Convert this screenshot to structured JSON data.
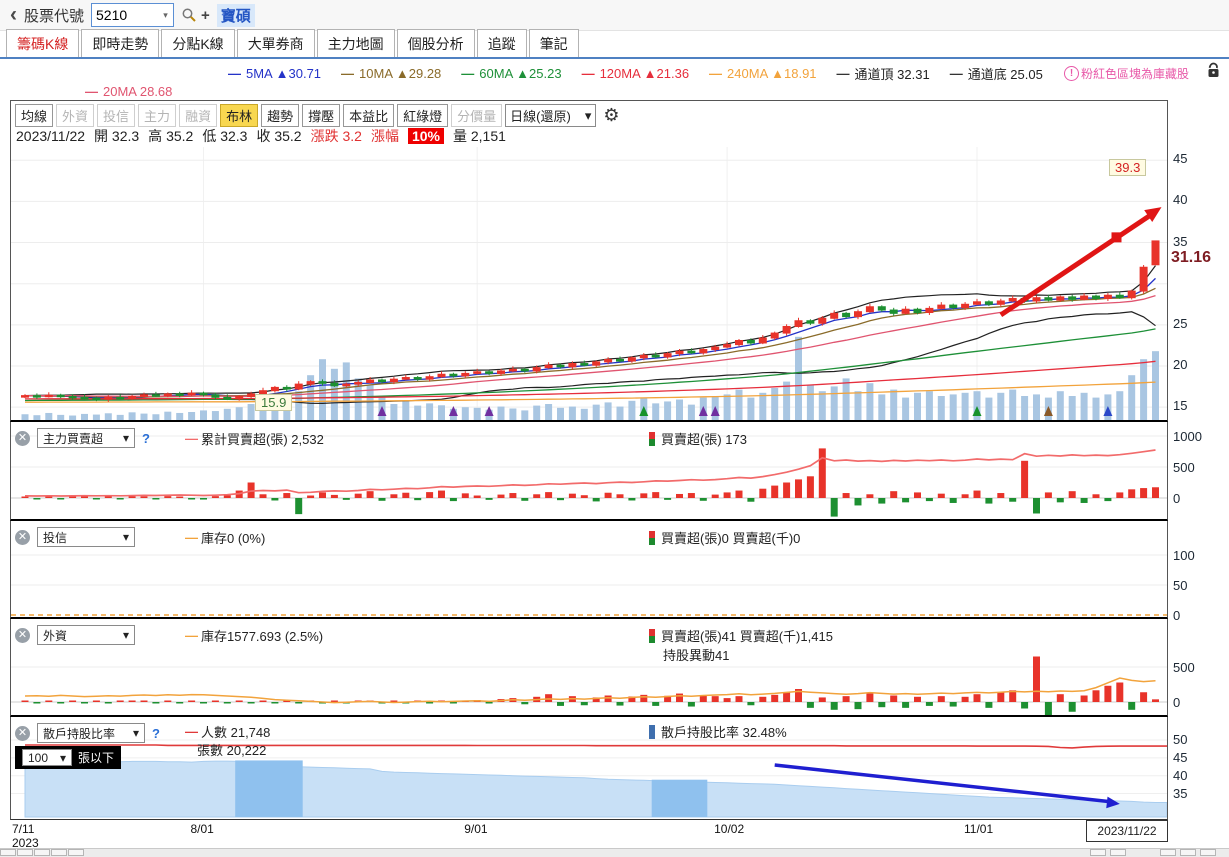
{
  "topbar": {
    "back": "‹",
    "label": "股票代號",
    "stock_value": "5210",
    "plus": "+",
    "stock_name": "寶碩"
  },
  "tabs": [
    {
      "label": "籌碼K線",
      "active": true
    },
    {
      "label": "即時走勢",
      "active": false
    },
    {
      "label": "分點K線",
      "active": false
    },
    {
      "label": "大單券商",
      "active": false
    },
    {
      "label": "主力地圖",
      "active": false
    },
    {
      "label": "個股分析",
      "active": false
    },
    {
      "label": "追蹤",
      "active": false
    },
    {
      "label": "筆記",
      "active": false
    }
  ],
  "legend": {
    "row1": [
      {
        "label": "5MA",
        "arrow": "▲",
        "value": "30.71",
        "color": "#2433c8"
      },
      {
        "label": "10MA",
        "arrow": "▲",
        "value": "29.28",
        "color": "#8a6b2a"
      },
      {
        "label": "60MA",
        "arrow": "▲",
        "value": "25.23",
        "color": "#1e9038"
      },
      {
        "label": "120MA",
        "arrow": "▲",
        "value": "21.36",
        "color": "#e62e3c"
      },
      {
        "label": "240MA",
        "arrow": "▲",
        "value": "18.91",
        "color": "#f2a33c"
      },
      {
        "label": "通道頂",
        "arrow": "",
        "value": "32.31",
        "color": "#333333"
      },
      {
        "label": "通道底",
        "arrow": "",
        "value": "25.05",
        "color": "#333333"
      }
    ],
    "row2": {
      "label": "20MA",
      "arrow": "",
      "value": "28.68",
      "color": "#e05570"
    },
    "note_icon": "!",
    "note": "粉紅色區塊為庫藏股"
  },
  "toolbar": {
    "buttons": [
      {
        "label": "均線",
        "state": "normal"
      },
      {
        "label": "外資",
        "state": "disabled"
      },
      {
        "label": "投信",
        "state": "disabled"
      },
      {
        "label": "主力",
        "state": "disabled"
      },
      {
        "label": "融資",
        "state": "disabled"
      },
      {
        "label": "布林",
        "state": "hl"
      },
      {
        "label": "趨勢",
        "state": "normal"
      },
      {
        "label": "撐壓",
        "state": "normal"
      },
      {
        "label": "本益比",
        "state": "normal"
      },
      {
        "label": "紅綠燈",
        "state": "normal"
      },
      {
        "label": "分價量",
        "state": "disabled"
      }
    ],
    "period": "日線(還原)",
    "period_arrow": "▾",
    "gear": "⚙"
  },
  "info": {
    "date": "2023/11/22",
    "o_l": "開",
    "o": "32.3",
    "h_l": "高",
    "h": "35.2",
    "l_l": "低",
    "l": "32.3",
    "c_l": "收",
    "c": "35.2",
    "chg_l": "漲跌",
    "chg": "3.2",
    "pct_l": "漲幅",
    "pct": "10%",
    "v_l": "量",
    "v": "2,151"
  },
  "axis": {
    "last_price": "31.16"
  },
  "annotations": {
    "arrow_label": "39.3",
    "low_label": "15.9"
  },
  "subpanes": {
    "s1": {
      "selector": "主力買賣超",
      "help": "?",
      "line_legend": "累計買賣超(張) 2,532",
      "bar_legend": "買賣超(張) 173"
    },
    "s2": {
      "selector": "投信",
      "line_legend": "庫存0 (0%)",
      "bar_legend": "買賣超(張)0 買賣超(千)0"
    },
    "s3": {
      "selector": "外資",
      "line_legend": "庫存1577.693 (2.5%)",
      "bar_legend": "買賣超(張)41 買賣超(千)1,415",
      "extra": "持股異動41"
    },
    "s4": {
      "selector": "散戶持股比率",
      "help": "?",
      "line_legend": "人數 21,748",
      "line_legend2": "張數 20,222",
      "bar_legend": "散戶持股比率 32.48%",
      "filter_value": "100",
      "filter_arrow": "▾",
      "filter_label": "張以下"
    }
  },
  "xaxis": {
    "labels": [
      {
        "t": "7/11",
        "i": 0
      },
      {
        "t": "8/01",
        "i": 15
      },
      {
        "t": "9/01",
        "i": 38
      },
      {
        "t": "10/02",
        "i": 59
      },
      {
        "t": "11/01",
        "i": 80
      }
    ],
    "year": "2023",
    "end": "2023/11/22"
  },
  "chart_data": {
    "type": "candlestick",
    "title": "5210 寶碩 日線(還原)",
    "last_ohlc": [
      32.3,
      35.2,
      32.3,
      35.2
    ],
    "price_ticks": [
      45,
      40,
      35,
      30,
      25,
      20,
      15
    ],
    "closes": [
      16.4,
      16.3,
      16.45,
      16.3,
      16.2,
      16.1,
      15.95,
      16.2,
      16.1,
      16.3,
      16.5,
      16.4,
      16.6,
      16.5,
      16.7,
      16.5,
      16.2,
      16.0,
      16.3,
      16.6,
      17.0,
      17.4,
      17.2,
      17.8,
      18.1,
      17.9,
      17.6,
      17.8,
      18.0,
      18.3,
      18.1,
      18.4,
      18.6,
      18.4,
      18.7,
      19.0,
      18.8,
      19.1,
      19.3,
      19.1,
      19.4,
      19.6,
      19.4,
      19.8,
      20.1,
      19.9,
      20.3,
      20.1,
      20.5,
      20.8,
      20.6,
      21.0,
      21.3,
      21.1,
      21.5,
      21.8,
      21.6,
      22.0,
      22.3,
      22.6,
      23.1,
      22.8,
      23.4,
      24.0,
      24.8,
      25.5,
      25.2,
      25.8,
      26.4,
      26.0,
      26.6,
      27.2,
      26.8,
      26.4,
      26.9,
      26.5,
      27.0,
      27.4,
      27.1,
      27.5,
      27.8,
      27.5,
      27.9,
      28.2,
      27.9,
      28.3,
      28.0,
      28.4,
      28.1,
      28.5,
      28.2,
      28.6,
      28.3,
      29.1,
      32.0,
      35.2
    ],
    "volumes": [
      180,
      150,
      220,
      160,
      140,
      190,
      170,
      210,
      160,
      240,
      200,
      180,
      260,
      220,
      250,
      300,
      280,
      350,
      400,
      500,
      600,
      450,
      550,
      900,
      1400,
      1900,
      1600,
      1800,
      1300,
      1100,
      700,
      500,
      600,
      450,
      520,
      460,
      350,
      400,
      380,
      320,
      420,
      360,
      300,
      450,
      500,
      380,
      420,
      350,
      480,
      550,
      420,
      600,
      680,
      520,
      580,
      640,
      480,
      700,
      750,
      800,
      950,
      700,
      850,
      1000,
      1200,
      2600,
      1100,
      900,
      1050,
      1300,
      900,
      1150,
      800,
      950,
      700,
      850,
      900,
      750,
      800,
      850,
      900,
      700,
      850,
      950,
      750,
      800,
      700,
      900,
      750,
      850,
      700,
      800,
      900,
      1400,
      1900,
      2151
    ],
    "ma_periods": [
      5,
      10,
      20,
      60,
      120,
      240
    ],
    "ma_colors": [
      "#2433c8",
      "#8a6b2a",
      "#e05570",
      "#1e9038",
      "#e62e3c",
      "#f2a33c"
    ],
    "ma_pads": [
      null,
      null,
      null,
      15.8,
      16.0,
      15.6
    ],
    "bollinger_color": "#222222",
    "volume_color": "#a9c6e2",
    "up_color": "#e8332a",
    "down_color": "#1d9031",
    "markers": [
      {
        "i": 30,
        "c": "#7030a0"
      },
      {
        "i": 36,
        "c": "#7030a0"
      },
      {
        "i": 39,
        "c": "#7030a0"
      },
      {
        "i": 52,
        "c": "#17922b"
      },
      {
        "i": 57,
        "c": "#7030a0"
      },
      {
        "i": 58,
        "c": "#7030a0"
      },
      {
        "i": 80,
        "c": "#17922b"
      },
      {
        "i": 86,
        "c": "#8a5a2a"
      },
      {
        "i": 91,
        "c": "#2b48c8"
      }
    ],
    "trend_arrow": {
      "from_i": 82,
      "from_price": 26.2,
      "to_price": 39.3,
      "color": "#e01515",
      "label": "39.3"
    },
    "low_label": {
      "i": 20,
      "text": "15.9"
    },
    "main_force": {
      "total": 2532,
      "line_color": "#f26b6b",
      "yticks": [
        1000,
        500,
        0
      ],
      "bars": [
        10,
        -8,
        15,
        -12,
        8,
        20,
        -15,
        12,
        -10,
        18,
        25,
        -12,
        30,
        15,
        -20,
        -25,
        30,
        45,
        120,
        250,
        60,
        -40,
        80,
        -260,
        40,
        90,
        50,
        -30,
        70,
        110,
        -45,
        60,
        85,
        -35,
        95,
        120,
        -50,
        75,
        40,
        -30,
        55,
        80,
        -45,
        60,
        95,
        -35,
        70,
        45,
        -55,
        85,
        60,
        -40,
        75,
        95,
        -30,
        65,
        80,
        -45,
        55,
        90,
        120,
        -60,
        150,
        200,
        250,
        300,
        350,
        800,
        -300,
        80,
        -120,
        60,
        -90,
        110,
        -70,
        90,
        -50,
        70,
        -80,
        60,
        120,
        -90,
        80,
        -60,
        600,
        -250,
        90,
        -70,
        110,
        -80,
        60,
        -50,
        90,
        140,
        160,
        173
      ]
    },
    "trust": {
      "inventory": 0,
      "yticks": [
        100,
        50,
        0
      ],
      "zero_line_color": "#f2a33c"
    },
    "foreign": {
      "line_color": "#f2a33c",
      "yticks": [
        500,
        0
      ],
      "inventory": [
        1450,
        1452,
        1448,
        1455,
        1450,
        1445,
        1448,
        1452,
        1449,
        1455,
        1458,
        1454,
        1460,
        1456,
        1462,
        1460,
        1455,
        1450,
        1445,
        1440,
        1430,
        1420,
        1415,
        1410,
        1405,
        1400,
        1395,
        1398,
        1402,
        1405,
        1400,
        1396,
        1399,
        1403,
        1406,
        1402,
        1405,
        1408,
        1410,
        1405,
        1412,
        1418,
        1414,
        1420,
        1426,
        1422,
        1428,
        1424,
        1430,
        1436,
        1432,
        1438,
        1444,
        1440,
        1446,
        1452,
        1448,
        1454,
        1458,
        1462,
        1468,
        1460,
        1466,
        1472,
        1480,
        1488,
        1482,
        1476,
        1470,
        1465,
        1470,
        1478,
        1472,
        1466,
        1470,
        1464,
        1468,
        1474,
        1470,
        1476,
        1480,
        1476,
        1482,
        1488,
        1484,
        1490,
        1486,
        1492,
        1488,
        1494,
        1520,
        1560,
        1600,
        1580,
        1570,
        1577.7
      ],
      "bars": [
        5,
        -3,
        8,
        -5,
        6,
        -4,
        7,
        -5,
        4,
        8,
        6,
        -4,
        9,
        -6,
        7,
        -10,
        8,
        -12,
        15,
        -8,
        20,
        -15,
        10,
        -18,
        12,
        -8,
        15,
        -10,
        8,
        12,
        -15,
        10,
        -8,
        12,
        -10,
        8,
        -6,
        10,
        30,
        -20,
        45,
        60,
        -35,
        80,
        120,
        -60,
        90,
        -50,
        70,
        100,
        -55,
        85,
        110,
        -60,
        95,
        130,
        -70,
        105,
        90,
        60,
        90,
        -50,
        80,
        110,
        150,
        200,
        -90,
        70,
        -120,
        90,
        -110,
        130,
        -80,
        100,
        -90,
        80,
        -60,
        90,
        -70,
        80,
        120,
        -90,
        150,
        180,
        -100,
        700,
        -250,
        120,
        -150,
        100,
        180,
        250,
        300,
        -120,
        150,
        41
      ]
    },
    "retail": {
      "area_color": "#c8e0f6",
      "area_edge": "#a9cdef",
      "band_color": "#8fc1ee",
      "people_color": "#e03a3a",
      "arrow_color": "#1f1fd0",
      "yticks": [
        50,
        45,
        40,
        35
      ],
      "bands": [
        [
          18,
          23
        ],
        [
          53,
          57
        ]
      ],
      "arrow": {
        "from_i": 63,
        "from_v": 43.0,
        "to_i": 92,
        "to_v": 32.1
      },
      "ratio": [
        43.6,
        43.6,
        43.7,
        43.7,
        43.8,
        43.8,
        43.8,
        43.9,
        43.9,
        44.0,
        44.0,
        44.0,
        43.9,
        43.9,
        43.8,
        44.0,
        44.1,
        44.1,
        44.0,
        43.2,
        43.0,
        42.8,
        42.6,
        42.5,
        42.4,
        42.3,
        42.2,
        42.1,
        42.0,
        41.9,
        41.2,
        41.0,
        40.9,
        40.8,
        40.7,
        40.6,
        40.5,
        40.4,
        40.3,
        40.2,
        40.1,
        40.0,
        39.9,
        39.8,
        39.7,
        39.6,
        39.5,
        39.4,
        39.2,
        39.0,
        38.9,
        38.8,
        38.7,
        38.6,
        38.5,
        38.4,
        38.3,
        38.2,
        38.1,
        38.0,
        37.9,
        37.8,
        37.7,
        37.6,
        37.4,
        37.2,
        37.0,
        36.8,
        36.6,
        36.4,
        36.2,
        36.0,
        35.8,
        35.6,
        35.4,
        35.2,
        35.0,
        34.8,
        34.6,
        34.4,
        34.2,
        34.0,
        33.9,
        33.8,
        33.7,
        33.6,
        33.5,
        33.4,
        33.3,
        33.2,
        33.1,
        33.0,
        32.9,
        32.8,
        32.6,
        32.48
      ],
      "people": [
        48.6,
        48.6,
        48.6,
        48.6,
        48.6,
        48.6,
        48.6,
        48.6,
        48.6,
        48.6,
        48.6,
        48.6,
        48.5,
        48.5,
        48.5,
        48.5,
        48.5,
        48.5,
        48.5,
        48.5,
        48.5,
        48.5,
        48.5,
        48.5,
        48.5,
        48.5,
        48.5,
        48.5,
        48.5,
        48.5,
        48.5,
        48.5,
        48.5,
        48.5,
        48.5,
        48.5,
        48.5,
        48.5,
        48.45,
        48.45,
        48.45,
        48.45,
        48.45,
        48.45,
        48.45,
        48.45,
        48.45,
        48.45,
        48.4,
        48.4,
        48.4,
        48.4,
        48.4,
        48.4,
        48.4,
        48.4,
        48.4,
        48.4,
        48.4,
        48.4,
        48.4,
        48.4,
        48.4,
        48.4,
        48.4,
        48.4,
        48.4,
        48.4,
        48.4,
        48.35,
        48.35,
        48.35,
        48.35,
        48.35,
        48.35,
        48.35,
        48.35,
        48.35,
        48.35,
        48.35,
        48.3,
        48.3,
        48.3,
        48.3,
        48.3,
        48.25,
        48.2,
        47.9,
        47.8,
        48.0,
        48.2,
        48.25,
        48.3,
        48.3,
        48.3,
        48.3
      ]
    }
  }
}
